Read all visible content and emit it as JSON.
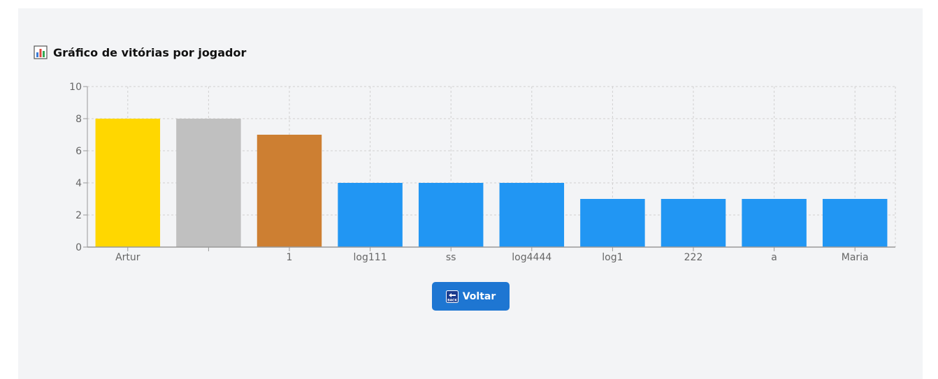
{
  "header": {
    "title": "Gráfico de vitórias por jogador",
    "icon": "bar-chart-icon"
  },
  "actions": {
    "back_label": "Voltar",
    "back_icon": "back-arrow-icon"
  },
  "chart_data": {
    "type": "bar",
    "title": "",
    "xlabel": "",
    "ylabel": "",
    "categories": [
      "Artur",
      "",
      "1",
      "log111",
      "ss",
      "log4444",
      "log1",
      "222",
      "a",
      "Maria"
    ],
    "values": [
      8,
      8,
      7,
      4,
      4,
      4,
      3,
      3,
      3,
      3
    ],
    "colors": [
      "#FFD700",
      "#C0C0C0",
      "#CD7F32",
      "#2196F3",
      "#2196F3",
      "#2196F3",
      "#2196F3",
      "#2196F3",
      "#2196F3",
      "#2196F3"
    ],
    "ylim": [
      0,
      10
    ],
    "yticks": [
      0,
      2,
      4,
      6,
      8,
      10
    ],
    "grid": true,
    "legend": "none"
  }
}
